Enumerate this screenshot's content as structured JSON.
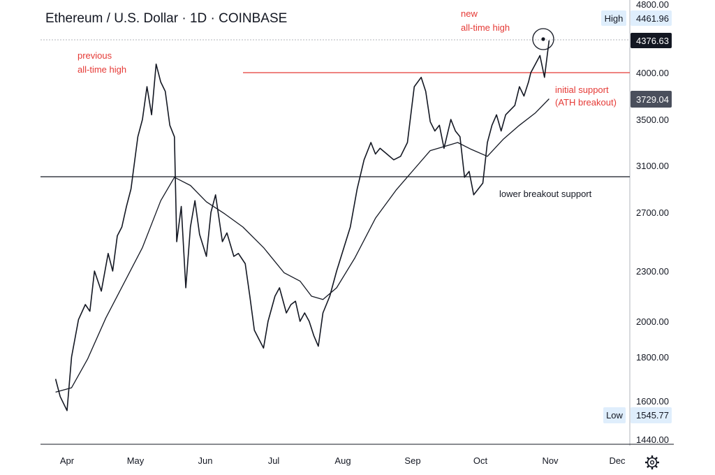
{
  "chart_data": {
    "type": "line",
    "title": "Ethereum / U.S. Dollar · 1D · COINBASE",
    "x_ticks": [
      "Apr",
      "May",
      "Jun",
      "Jul",
      "Aug",
      "Sep",
      "Oct",
      "Nov",
      "Dec"
    ],
    "y_ticks": [
      "4800.00",
      "4000.00",
      "3500.00",
      "3100.00",
      "2700.00",
      "2300.00",
      "2000.00",
      "1800.00",
      "1600.00",
      "1440.00"
    ],
    "series": [
      {
        "role": "price",
        "x": [
          "2021-03-27",
          "2021-03-29",
          "2021-04-01",
          "2021-04-03",
          "2021-04-06",
          "2021-04-09",
          "2021-04-11",
          "2021-04-13",
          "2021-04-16",
          "2021-04-19",
          "2021-04-21",
          "2021-04-23",
          "2021-04-25",
          "2021-04-27",
          "2021-04-29",
          "2021-05-02",
          "2021-05-04",
          "2021-05-06",
          "2021-05-08",
          "2021-05-10",
          "2021-05-12",
          "2021-05-14",
          "2021-05-16",
          "2021-05-18",
          "2021-05-19",
          "2021-05-21",
          "2021-05-23",
          "2021-05-25",
          "2021-05-27",
          "2021-05-29",
          "2021-06-01",
          "2021-06-03",
          "2021-06-05",
          "2021-06-08",
          "2021-06-10",
          "2021-06-13",
          "2021-06-15",
          "2021-06-18",
          "2021-06-20",
          "2021-06-22",
          "2021-06-24",
          "2021-06-26",
          "2021-06-28",
          "2021-07-01",
          "2021-07-03",
          "2021-07-06",
          "2021-07-08",
          "2021-07-10",
          "2021-07-12",
          "2021-07-14",
          "2021-07-16",
          "2021-07-18",
          "2021-07-20",
          "2021-07-22",
          "2021-07-25",
          "2021-07-28",
          "2021-07-31",
          "2021-08-03",
          "2021-08-06",
          "2021-08-09",
          "2021-08-12",
          "2021-08-14",
          "2021-08-16",
          "2021-08-19",
          "2021-08-22",
          "2021-08-25",
          "2021-08-28",
          "2021-08-31",
          "2021-09-03",
          "2021-09-05",
          "2021-09-07",
          "2021-09-09",
          "2021-09-11",
          "2021-09-13",
          "2021-09-16",
          "2021-09-18",
          "2021-09-20",
          "2021-09-22",
          "2021-09-24",
          "2021-09-26",
          "2021-09-28",
          "2021-09-30",
          "2021-10-02",
          "2021-10-04",
          "2021-10-06",
          "2021-10-08",
          "2021-10-10",
          "2021-10-12",
          "2021-10-14",
          "2021-10-16",
          "2021-10-18",
          "2021-10-20",
          "2021-10-21",
          "2021-10-23",
          "2021-10-25",
          "2021-10-27",
          "2021-10-29"
        ],
        "values": [
          1700,
          1620,
          1560,
          1800,
          2010,
          2100,
          2060,
          2300,
          2180,
          2420,
          2300,
          2540,
          2600,
          2750,
          2900,
          3350,
          3500,
          3850,
          3550,
          4100,
          3900,
          3800,
          3450,
          3350,
          2500,
          2750,
          2200,
          2600,
          2800,
          2550,
          2400,
          2700,
          2850,
          2500,
          2560,
          2400,
          2420,
          2350,
          2150,
          1950,
          1900,
          1850,
          2000,
          2150,
          2200,
          2050,
          2100,
          2120,
          2000,
          2050,
          2000,
          1920,
          1860,
          2050,
          2150,
          2300,
          2450,
          2600,
          2900,
          3150,
          3300,
          3200,
          3250,
          3200,
          3150,
          3180,
          3300,
          3850,
          3950,
          3800,
          3480,
          3400,
          3450,
          3250,
          3500,
          3400,
          3350,
          3000,
          3050,
          2850,
          2900,
          2950,
          3300,
          3450,
          3550,
          3400,
          3550,
          3600,
          3650,
          3850,
          3750,
          3900,
          4000,
          4100,
          4200,
          3950,
          4376.63
        ]
      },
      {
        "role": "moving average",
        "x": [
          "2021-03-27",
          "2021-04-03",
          "2021-04-10",
          "2021-04-18",
          "2021-04-26",
          "2021-05-04",
          "2021-05-12",
          "2021-05-18",
          "2021-05-25",
          "2021-06-01",
          "2021-06-09",
          "2021-06-17",
          "2021-06-26",
          "2021-07-05",
          "2021-07-12",
          "2021-07-17",
          "2021-07-22",
          "2021-07-28",
          "2021-08-05",
          "2021-08-14",
          "2021-08-23",
          "2021-08-31",
          "2021-09-07",
          "2021-09-14",
          "2021-09-19",
          "2021-09-25",
          "2021-10-02",
          "2021-10-09",
          "2021-10-16",
          "2021-10-23",
          "2021-10-29"
        ],
        "values": [
          1640,
          1660,
          1790,
          2020,
          2230,
          2460,
          2800,
          3000,
          2930,
          2790,
          2690,
          2600,
          2460,
          2290,
          2240,
          2150,
          2130,
          2200,
          2390,
          2660,
          2890,
          3070,
          3230,
          3270,
          3300,
          3240,
          3180,
          3330,
          3450,
          3570,
          3720
        ]
      }
    ],
    "hlines": [
      {
        "value": 4000,
        "label": "previous all-time high",
        "color": "#e53935"
      },
      {
        "value": 3000,
        "label": "lower breakout support",
        "color": "#131722"
      }
    ],
    "annotations": {
      "prev_ath_1": "previous",
      "prev_ath_2": "all-time high",
      "new_ath_1": "new",
      "new_ath_2": "all-time high",
      "initial_support_1": "initial support",
      "initial_support_2": "(ATH breakout)",
      "lower_support": "lower breakout support"
    },
    "badges": {
      "high_label": "High",
      "high_value": "4461.96",
      "last_price": "4376.63",
      "ma_value": "3729.04",
      "low_label": "Low",
      "low_value": "1545.77"
    },
    "colors": {
      "price": "#131722",
      "red_line": "#e53935",
      "badge_blue_bg": "#dfeefc",
      "badge_dark_bg": "#131722",
      "ma_badge_bg": "#4a4f5c"
    }
  }
}
